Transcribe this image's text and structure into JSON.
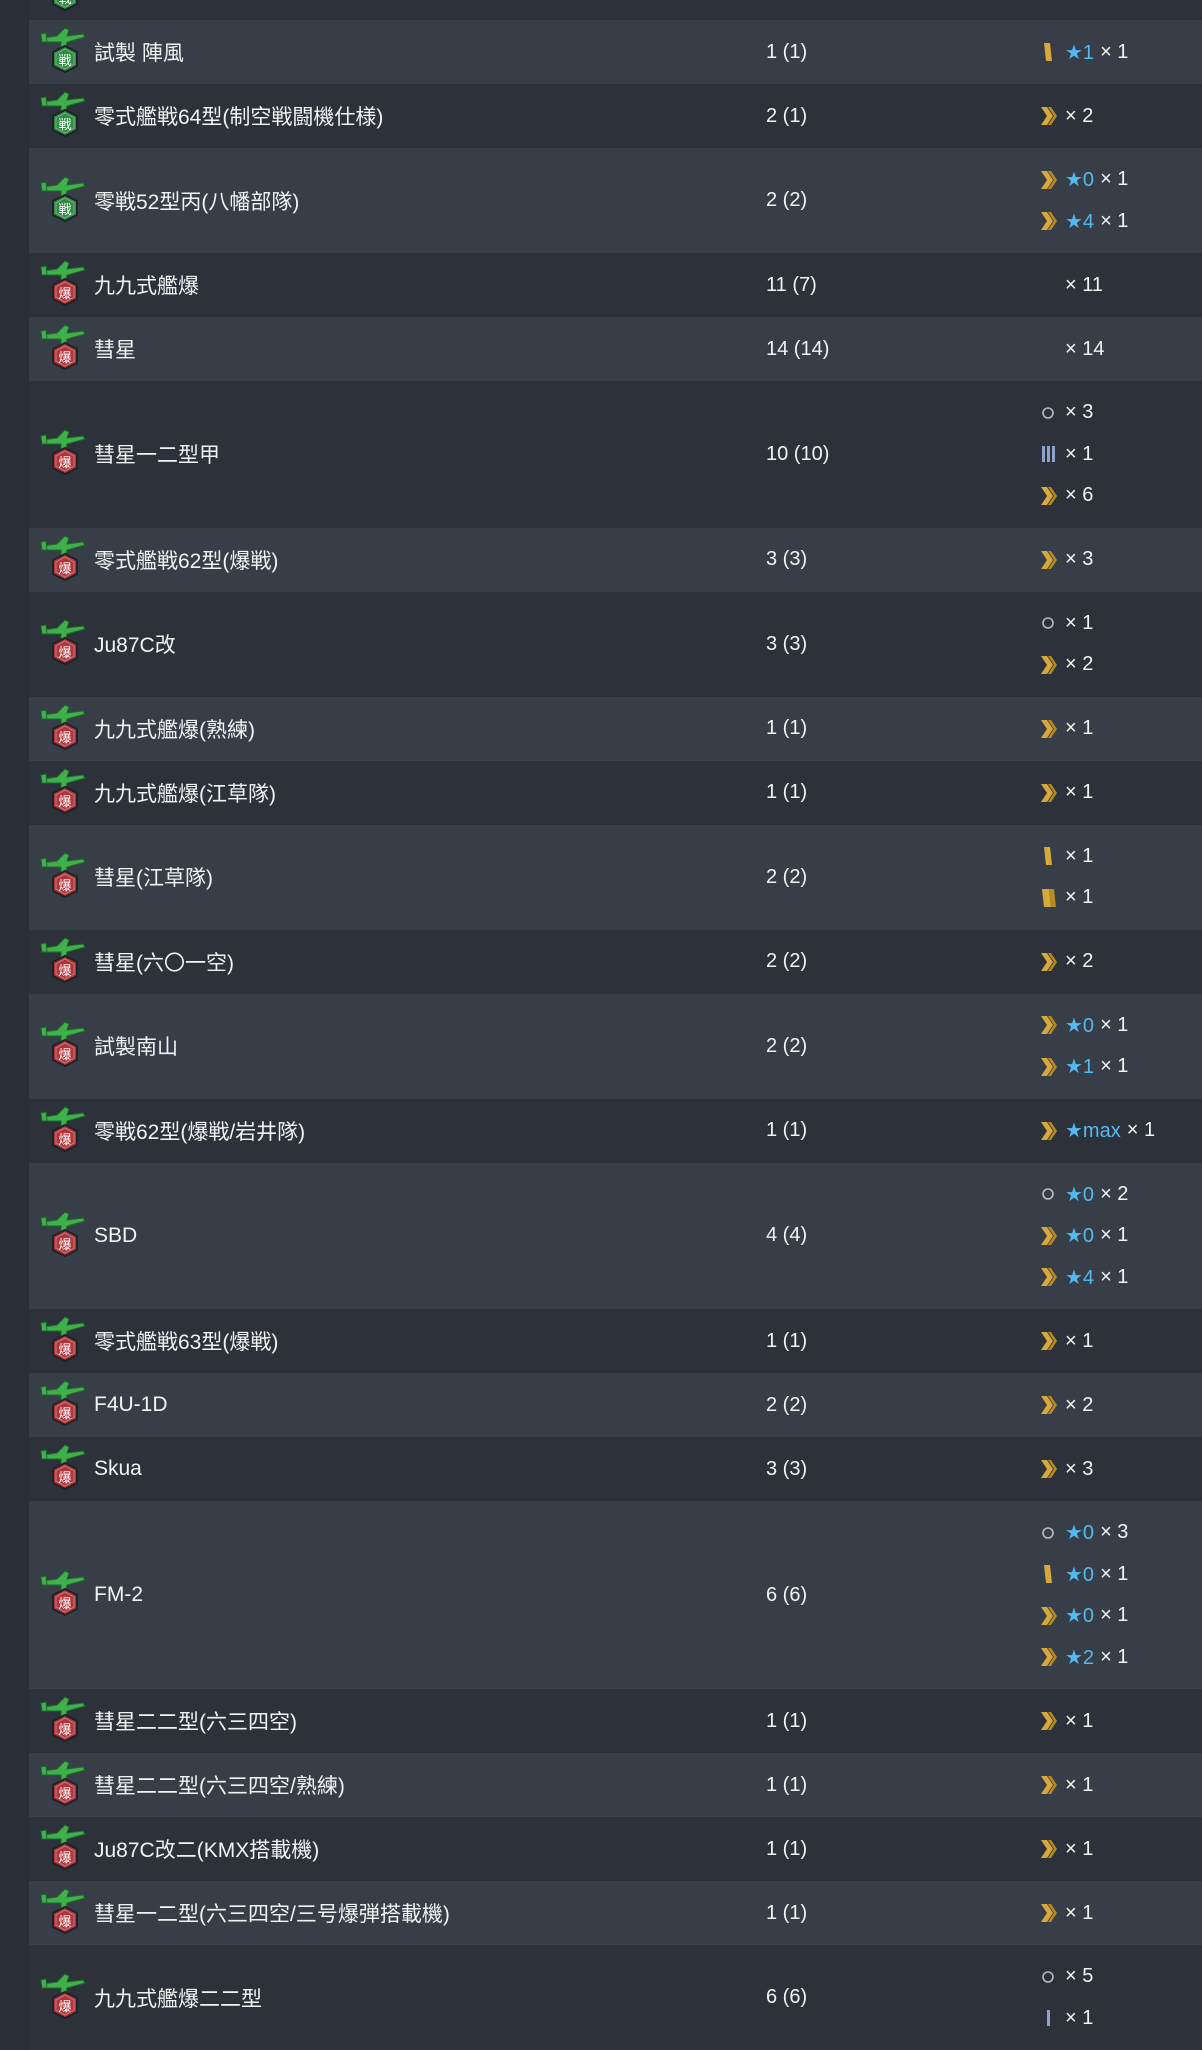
{
  "colors": {
    "fighter_badge": "#2f8a43",
    "bomber_badge": "#b0353a",
    "star_text": "#53b9f0",
    "prof_gold": "#d6a93a",
    "prof_blue": "#8fa2c9",
    "row_dark": "#2c313a",
    "row_light": "#383e48"
  },
  "rows": [
    {
      "name": "試製 陣風",
      "count": "1 (1)",
      "icon": "fighter",
      "prof": [
        {
          "mark": "bar1",
          "star": "★1",
          "mult": "× 1"
        }
      ]
    },
    {
      "name": "零式艦戦64型(制空戦闘機仕様)",
      "count": "2 (1)",
      "icon": "fighter",
      "prof": [
        {
          "mark": "chev2",
          "star": "",
          "mult": "× 2"
        }
      ]
    },
    {
      "name": "零戦52型丙(八幡部隊)",
      "count": "2 (2)",
      "icon": "fighter",
      "prof": [
        {
          "mark": "chev2",
          "star": "★0",
          "mult": "× 1"
        },
        {
          "mark": "chev2",
          "star": "★4",
          "mult": "× 1"
        }
      ]
    },
    {
      "name": "九九式艦爆",
      "count": "11 (7)",
      "icon": "bomber",
      "prof": [
        {
          "mark": "none",
          "star": "",
          "mult": "× 11"
        }
      ]
    },
    {
      "name": "彗星",
      "count": "14 (14)",
      "icon": "bomber",
      "prof": [
        {
          "mark": "none",
          "star": "",
          "mult": "× 14"
        }
      ]
    },
    {
      "name": "彗星一二型甲",
      "count": "10 (10)",
      "icon": "bomber",
      "prof": [
        {
          "mark": "circle",
          "star": "",
          "mult": "× 3"
        },
        {
          "mark": "blue3",
          "star": "",
          "mult": "× 1"
        },
        {
          "mark": "chev2",
          "star": "",
          "mult": "× 6"
        }
      ]
    },
    {
      "name": "零式艦戦62型(爆戦)",
      "count": "3 (3)",
      "icon": "bomber",
      "prof": [
        {
          "mark": "chev2",
          "star": "",
          "mult": "× 3"
        }
      ]
    },
    {
      "name": "Ju87C改",
      "count": "3 (3)",
      "icon": "bomber",
      "prof": [
        {
          "mark": "circle",
          "star": "",
          "mult": "× 1"
        },
        {
          "mark": "chev2",
          "star": "",
          "mult": "× 2"
        }
      ]
    },
    {
      "name": "九九式艦爆(熟練)",
      "count": "1 (1)",
      "icon": "bomber",
      "prof": [
        {
          "mark": "chev2",
          "star": "",
          "mult": "× 1"
        }
      ]
    },
    {
      "name": "九九式艦爆(江草隊)",
      "count": "1 (1)",
      "icon": "bomber",
      "prof": [
        {
          "mark": "chev2",
          "star": "",
          "mult": "× 1"
        }
      ]
    },
    {
      "name": "彗星(江草隊)",
      "count": "2 (2)",
      "icon": "bomber",
      "prof": [
        {
          "mark": "bar1",
          "star": "",
          "mult": "× 1"
        },
        {
          "mark": "bar2",
          "star": "",
          "mult": "× 1"
        }
      ]
    },
    {
      "name": "彗星(六〇一空)",
      "count": "2 (2)",
      "icon": "bomber",
      "prof": [
        {
          "mark": "chev2",
          "star": "",
          "mult": "× 2"
        }
      ]
    },
    {
      "name": "試製南山",
      "count": "2 (2)",
      "icon": "bomber",
      "prof": [
        {
          "mark": "chev2",
          "star": "★0",
          "mult": "× 1"
        },
        {
          "mark": "chev2",
          "star": "★1",
          "mult": "× 1"
        }
      ]
    },
    {
      "name": "零戦62型(爆戦/岩井隊)",
      "count": "1 (1)",
      "icon": "bomber",
      "prof": [
        {
          "mark": "chev2",
          "star": "★max",
          "mult": "× 1"
        }
      ]
    },
    {
      "name": "SBD",
      "count": "4 (4)",
      "icon": "bomber",
      "prof": [
        {
          "mark": "circle",
          "star": "★0",
          "mult": "× 2"
        },
        {
          "mark": "chev2",
          "star": "★0",
          "mult": "× 1"
        },
        {
          "mark": "chev2",
          "star": "★4",
          "mult": "× 1"
        }
      ]
    },
    {
      "name": "零式艦戦63型(爆戦)",
      "count": "1 (1)",
      "icon": "bomber",
      "prof": [
        {
          "mark": "chev2",
          "star": "",
          "mult": "× 1"
        }
      ]
    },
    {
      "name": "F4U-1D",
      "count": "2 (2)",
      "icon": "bomber",
      "prof": [
        {
          "mark": "chev2",
          "star": "",
          "mult": "× 2"
        }
      ]
    },
    {
      "name": "Skua",
      "count": "3 (3)",
      "icon": "bomber",
      "prof": [
        {
          "mark": "chev2",
          "star": "",
          "mult": "× 3"
        }
      ]
    },
    {
      "name": "FM-2",
      "count": "6 (6)",
      "icon": "bomber",
      "prof": [
        {
          "mark": "circle",
          "star": "★0",
          "mult": "× 3"
        },
        {
          "mark": "bar1",
          "star": "★0",
          "mult": "× 1"
        },
        {
          "mark": "chev2",
          "star": "★0",
          "mult": "× 1"
        },
        {
          "mark": "chev2",
          "star": "★2",
          "mult": "× 1"
        }
      ]
    },
    {
      "name": "彗星二二型(六三四空)",
      "count": "1 (1)",
      "icon": "bomber",
      "prof": [
        {
          "mark": "chev2",
          "star": "",
          "mult": "× 1"
        }
      ]
    },
    {
      "name": "彗星二二型(六三四空/熟練)",
      "count": "1 (1)",
      "icon": "bomber",
      "prof": [
        {
          "mark": "chev2",
          "star": "",
          "mult": "× 1"
        }
      ]
    },
    {
      "name": "Ju87C改二(KMX搭載機)",
      "count": "1 (1)",
      "icon": "bomber",
      "prof": [
        {
          "mark": "chev2",
          "star": "",
          "mult": "× 1"
        }
      ]
    },
    {
      "name": "彗星一二型(六三四空/三号爆弾搭載機)",
      "count": "1 (1)",
      "icon": "bomber",
      "prof": [
        {
          "mark": "chev2",
          "star": "",
          "mult": "× 1"
        }
      ]
    },
    {
      "name": "九九式艦爆二二型",
      "count": "6 (6)",
      "icon": "bomber",
      "prof": [
        {
          "mark": "circle",
          "star": "",
          "mult": "× 5"
        },
        {
          "mark": "blue1",
          "star": "",
          "mult": "× 1"
        }
      ]
    }
  ]
}
